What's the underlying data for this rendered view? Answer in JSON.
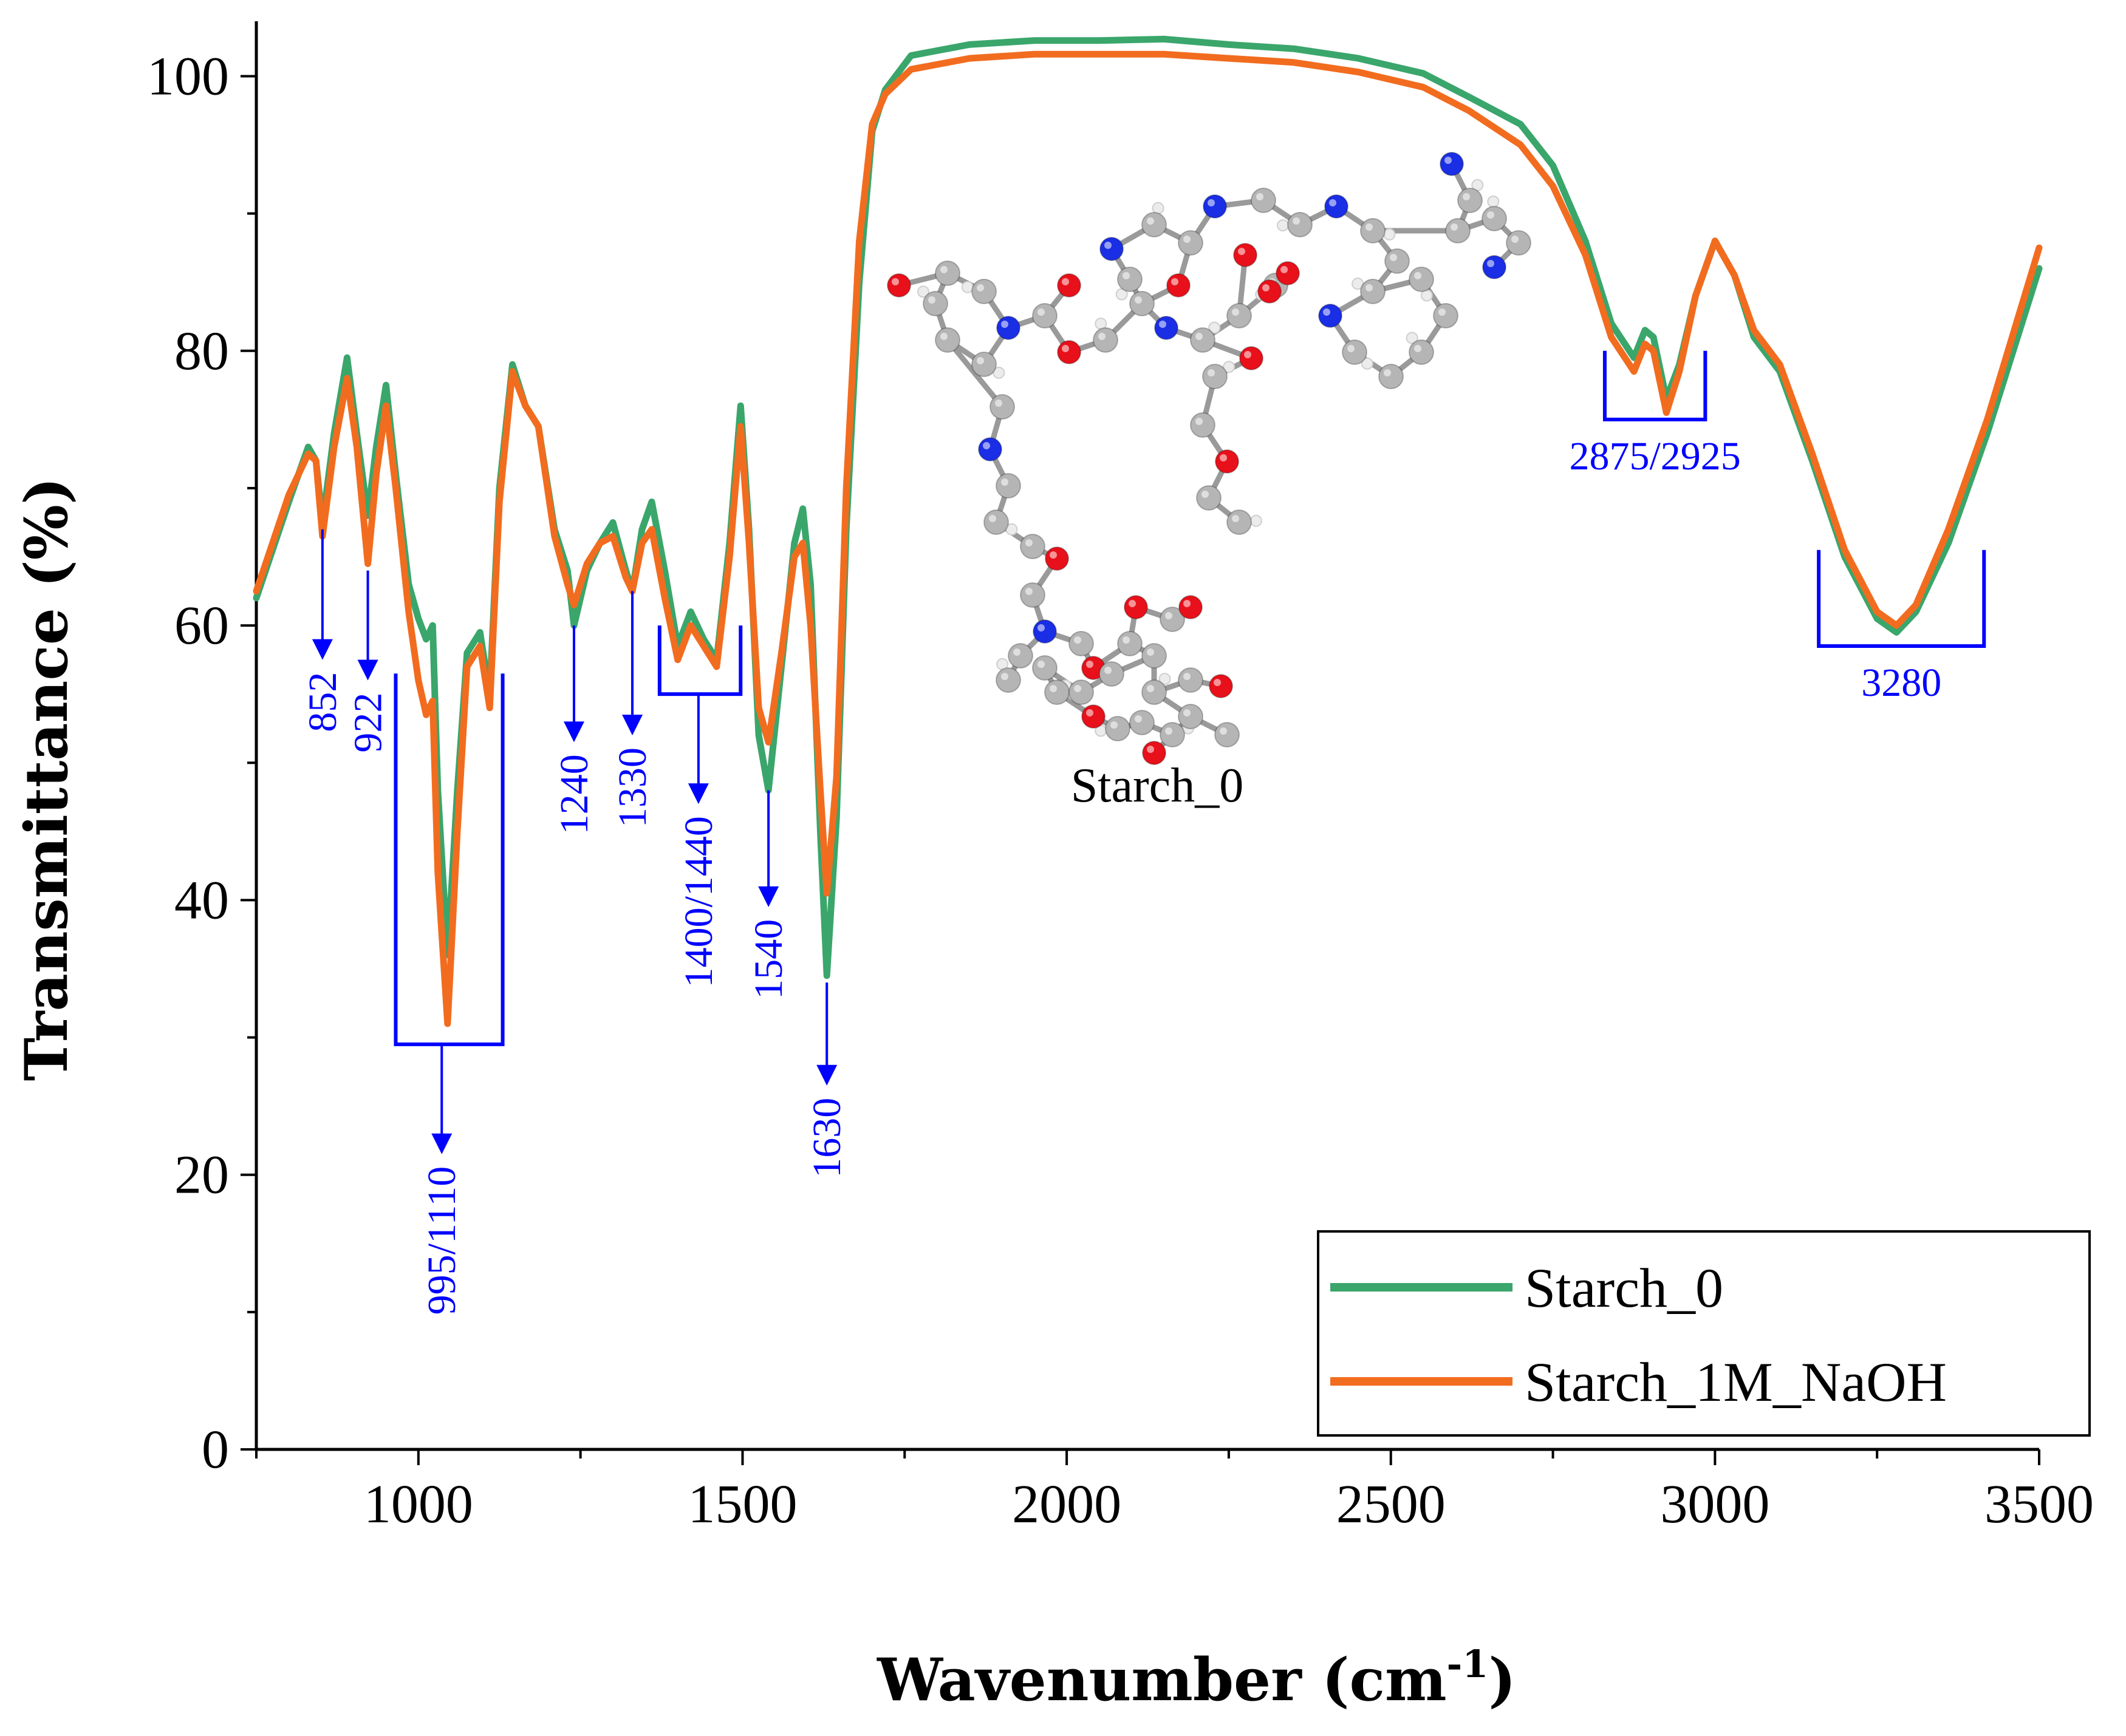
{
  "chart_data": {
    "type": "line",
    "title": "",
    "xlabel_main": "Wavenumber (cm",
    "xlabel_sup": "-1",
    "xlabel_close": ")",
    "ylabel": "Transmittance (%)",
    "xlim": [
      750,
      3500
    ],
    "ylim": [
      0,
      104
    ],
    "xticks": [
      1000,
      1500,
      2000,
      2500,
      3000,
      3500
    ],
    "yticks": [
      0,
      20,
      40,
      60,
      80,
      100
    ],
    "colors": {
      "green": "#3aa66b",
      "orange": "#f26c1f",
      "blue": "#0000ff"
    },
    "series": [
      {
        "name": "Starch_0",
        "color": "#3aa66b",
        "points": [
          [
            750,
            62
          ],
          [
            800,
            69
          ],
          [
            830,
            73
          ],
          [
            842,
            72
          ],
          [
            852,
            67.5
          ],
          [
            870,
            74
          ],
          [
            890,
            79.5
          ],
          [
            905,
            74
          ],
          [
            922,
            68
          ],
          [
            935,
            73
          ],
          [
            950,
            77.5
          ],
          [
            965,
            71
          ],
          [
            985,
            63
          ],
          [
            1000,
            60.5
          ],
          [
            1012,
            59
          ],
          [
            1022,
            60
          ],
          [
            1030,
            48
          ],
          [
            1045,
            36
          ],
          [
            1060,
            48
          ],
          [
            1075,
            58
          ],
          [
            1095,
            59.5
          ],
          [
            1110,
            55
          ],
          [
            1125,
            70
          ],
          [
            1145,
            79
          ],
          [
            1165,
            76
          ],
          [
            1185,
            74.5
          ],
          [
            1210,
            67
          ],
          [
            1230,
            64
          ],
          [
            1240,
            60
          ],
          [
            1260,
            64
          ],
          [
            1280,
            66
          ],
          [
            1300,
            67.5
          ],
          [
            1320,
            64
          ],
          [
            1330,
            62.5
          ],
          [
            1345,
            67
          ],
          [
            1360,
            69
          ],
          [
            1380,
            64
          ],
          [
            1400,
            58.5
          ],
          [
            1420,
            61
          ],
          [
            1440,
            59
          ],
          [
            1460,
            57.5
          ],
          [
            1480,
            66
          ],
          [
            1497,
            76
          ],
          [
            1510,
            67
          ],
          [
            1525,
            52
          ],
          [
            1540,
            48
          ],
          [
            1560,
            57
          ],
          [
            1580,
            66
          ],
          [
            1593,
            68.5
          ],
          [
            1605,
            63
          ],
          [
            1620,
            45
          ],
          [
            1630,
            34.5
          ],
          [
            1645,
            46
          ],
          [
            1660,
            67
          ],
          [
            1680,
            85
          ],
          [
            1700,
            96
          ],
          [
            1720,
            99
          ],
          [
            1760,
            101.5
          ],
          [
            1850,
            102.3
          ],
          [
            1950,
            102.6
          ],
          [
            2050,
            102.6
          ],
          [
            2150,
            102.7
          ],
          [
            2250,
            102.3
          ],
          [
            2350,
            102.0
          ],
          [
            2450,
            101.3
          ],
          [
            2550,
            100.2
          ],
          [
            2620,
            98.5
          ],
          [
            2700,
            96.5
          ],
          [
            2750,
            93.5
          ],
          [
            2800,
            88
          ],
          [
            2840,
            82
          ],
          [
            2875,
            79.5
          ],
          [
            2892,
            81.5
          ],
          [
            2905,
            81
          ],
          [
            2925,
            76.5
          ],
          [
            2945,
            79
          ],
          [
            2970,
            84
          ],
          [
            3000,
            88
          ],
          [
            3030,
            85.5
          ],
          [
            3060,
            81
          ],
          [
            3100,
            78.5
          ],
          [
            3150,
            72
          ],
          [
            3200,
            65
          ],
          [
            3250,
            60.5
          ],
          [
            3280,
            59.5
          ],
          [
            3310,
            61
          ],
          [
            3360,
            66
          ],
          [
            3420,
            74
          ],
          [
            3500,
            86
          ]
        ]
      },
      {
        "name": "Starch_1M_NaOH",
        "color": "#f26c1f",
        "points": [
          [
            750,
            62.5
          ],
          [
            800,
            69.5
          ],
          [
            830,
            72.5
          ],
          [
            842,
            72
          ],
          [
            852,
            66.5
          ],
          [
            870,
            73
          ],
          [
            890,
            78
          ],
          [
            905,
            73
          ],
          [
            922,
            64.5
          ],
          [
            935,
            71
          ],
          [
            950,
            76
          ],
          [
            965,
            70
          ],
          [
            985,
            61
          ],
          [
            1000,
            56
          ],
          [
            1012,
            53.5
          ],
          [
            1022,
            54.5
          ],
          [
            1030,
            42
          ],
          [
            1045,
            31
          ],
          [
            1060,
            45
          ],
          [
            1075,
            57
          ],
          [
            1095,
            58.5
          ],
          [
            1110,
            54
          ],
          [
            1125,
            69
          ],
          [
            1145,
            78.5
          ],
          [
            1165,
            76
          ],
          [
            1185,
            74.5
          ],
          [
            1210,
            66.5
          ],
          [
            1230,
            63
          ],
          [
            1240,
            61.5
          ],
          [
            1260,
            64.5
          ],
          [
            1280,
            66
          ],
          [
            1300,
            66.5
          ],
          [
            1320,
            63.5
          ],
          [
            1330,
            62.5
          ],
          [
            1345,
            66
          ],
          [
            1360,
            67
          ],
          [
            1380,
            62
          ],
          [
            1400,
            57.5
          ],
          [
            1420,
            60
          ],
          [
            1440,
            58.5
          ],
          [
            1460,
            57
          ],
          [
            1480,
            65
          ],
          [
            1497,
            74.5
          ],
          [
            1510,
            66
          ],
          [
            1525,
            54
          ],
          [
            1540,
            51.5
          ],
          [
            1560,
            58
          ],
          [
            1580,
            65
          ],
          [
            1593,
            66
          ],
          [
            1605,
            60
          ],
          [
            1620,
            48
          ],
          [
            1630,
            40.5
          ],
          [
            1645,
            49
          ],
          [
            1660,
            70
          ],
          [
            1680,
            88
          ],
          [
            1700,
            96.5
          ],
          [
            1720,
            98.7
          ],
          [
            1760,
            100.5
          ],
          [
            1850,
            101.3
          ],
          [
            1950,
            101.6
          ],
          [
            2050,
            101.6
          ],
          [
            2150,
            101.6
          ],
          [
            2250,
            101.3
          ],
          [
            2350,
            101.0
          ],
          [
            2450,
            100.3
          ],
          [
            2550,
            99.2
          ],
          [
            2620,
            97.5
          ],
          [
            2700,
            95
          ],
          [
            2750,
            92
          ],
          [
            2800,
            87
          ],
          [
            2840,
            81
          ],
          [
            2875,
            78.5
          ],
          [
            2892,
            80.5
          ],
          [
            2905,
            80
          ],
          [
            2925,
            75.5
          ],
          [
            2945,
            78.5
          ],
          [
            2970,
            84
          ],
          [
            3000,
            88
          ],
          [
            3030,
            85.5
          ],
          [
            3060,
            81.5
          ],
          [
            3100,
            79
          ],
          [
            3150,
            72.5
          ],
          [
            3200,
            65.5
          ],
          [
            3250,
            61
          ],
          [
            3280,
            60
          ],
          [
            3310,
            61.5
          ],
          [
            3360,
            67
          ],
          [
            3420,
            75
          ],
          [
            3500,
            87.5
          ]
        ]
      }
    ],
    "annotations": [
      {
        "id": "852",
        "label": "852",
        "x": 852,
        "top": 67,
        "tip": 57.5,
        "rot": -90
      },
      {
        "id": "922",
        "label": "922",
        "x": 922,
        "top": 64,
        "tip": 56,
        "rot": -90
      },
      {
        "id": "1240",
        "label": "1240",
        "x": 1240,
        "top": 60,
        "tip": 51.5,
        "rot": -90
      },
      {
        "id": "1330",
        "label": "1330",
        "x": 1330,
        "top": 62.5,
        "tip": 52,
        "rot": -90
      },
      {
        "id": "1540",
        "label": "1540",
        "x": 1540,
        "top": 48,
        "tip": 39.5,
        "rot": -90
      },
      {
        "id": "1630",
        "label": "1630",
        "x": 1630,
        "top": 34,
        "tip": 26.5,
        "rot": -90
      },
      {
        "id": "995_1110",
        "label": "995/1110",
        "x": 1036,
        "bracket": [
          965,
          1130
        ],
        "btop": 56.5,
        "bbot": 29.5,
        "tip": 21.5,
        "rot": -90
      },
      {
        "id": "1400_1440",
        "label": "1400/1440",
        "x": 1432,
        "bracket": [
          1372,
          1497
        ],
        "btop": 60,
        "bbot": 55,
        "tip": 47,
        "rot": -90
      },
      {
        "id": "2875_2925",
        "label": "2875/2925",
        "x": 2903,
        "bracket": [
          2830,
          2985
        ],
        "btop": 80,
        "bbot": 75,
        "rot": 0
      },
      {
        "id": "3280",
        "label": "3280",
        "x": 3287,
        "bracket": [
          3160,
          3415
        ],
        "btop": 65.5,
        "bbot": 58.5,
        "rot": 0
      }
    ],
    "legend": {
      "position": "bottom-right",
      "entries": [
        "Starch_0",
        "Starch_1M_NaOH"
      ]
    },
    "inset": {
      "label": "Starch_0"
    }
  }
}
